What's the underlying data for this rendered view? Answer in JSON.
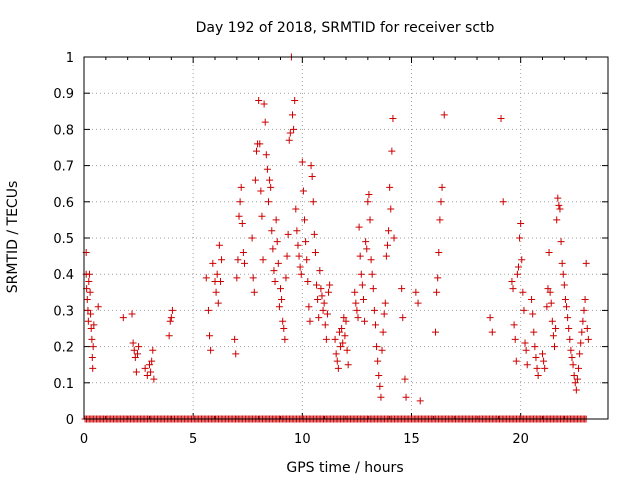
{
  "chart_data": {
    "type": "scatter",
    "title": "Day 192 of 2018, SRMTID for receiver sctb",
    "xlabel": "GPS time / hours",
    "ylabel": "SRMTID / TECUs",
    "xlim": [
      0,
      24
    ],
    "ylim": [
      0,
      1
    ],
    "xticks": [
      0,
      5,
      10,
      15,
      20
    ],
    "xtick_labels": [
      "0",
      "5",
      "10",
      "15",
      "20"
    ],
    "yticks": [
      0,
      0.1,
      0.2,
      0.3,
      0.4,
      0.5,
      0.6,
      0.7,
      0.8,
      0.9,
      1
    ],
    "ytick_labels": [
      "0",
      "0.1",
      "0.2",
      "0.3",
      "0.4",
      "0.5",
      "0.6",
      "0.7",
      "0.8",
      "0.9",
      "1"
    ],
    "grid": true,
    "marker": "+",
    "series": [
      {
        "name": "SRMTID",
        "color": "#cc0000",
        "points": [
          [
            0.1,
            0.46
          ],
          [
            0.1,
            0.4
          ],
          [
            0.12,
            0.36
          ],
          [
            0.15,
            0.33
          ],
          [
            0.18,
            0.3
          ],
          [
            0.2,
            0.27
          ],
          [
            0.22,
            0.38
          ],
          [
            0.25,
            0.4
          ],
          [
            0.28,
            0.35
          ],
          [
            0.3,
            0.29
          ],
          [
            0.33,
            0.25
          ],
          [
            0.36,
            0.22
          ],
          [
            0.38,
            0.17
          ],
          [
            0.4,
            0.14
          ],
          [
            0.42,
            0.2
          ],
          [
            0.45,
            0.26
          ],
          [
            0.65,
            0.31
          ],
          [
            1.8,
            0.28
          ],
          [
            2.2,
            0.29
          ],
          [
            2.25,
            0.21
          ],
          [
            2.3,
            0.19
          ],
          [
            2.35,
            0.17
          ],
          [
            2.4,
            0.13
          ],
          [
            2.45,
            0.18
          ],
          [
            2.5,
            0.2
          ],
          [
            2.8,
            0.14
          ],
          [
            2.9,
            0.12
          ],
          [
            3.0,
            0.15
          ],
          [
            3.05,
            0.13
          ],
          [
            3.1,
            0.16
          ],
          [
            3.15,
            0.19
          ],
          [
            3.2,
            0.11
          ],
          [
            3.9,
            0.23
          ],
          [
            3.95,
            0.27
          ],
          [
            4.0,
            0.28
          ],
          [
            4.05,
            0.3
          ],
          [
            5.6,
            0.39
          ],
          [
            5.7,
            0.3
          ],
          [
            5.75,
            0.23
          ],
          [
            5.8,
            0.19
          ],
          [
            5.9,
            0.43
          ],
          [
            6.0,
            0.38
          ],
          [
            6.05,
            0.35
          ],
          [
            6.1,
            0.4
          ],
          [
            6.15,
            0.32
          ],
          [
            6.2,
            0.48
          ],
          [
            6.25,
            0.38
          ],
          [
            6.3,
            0.44
          ],
          [
            6.9,
            0.22
          ],
          [
            6.95,
            0.18
          ],
          [
            7.0,
            0.39
          ],
          [
            7.05,
            0.44
          ],
          [
            7.1,
            0.56
          ],
          [
            7.15,
            0.6
          ],
          [
            7.2,
            0.64
          ],
          [
            7.25,
            0.54
          ],
          [
            7.3,
            0.46
          ],
          [
            7.35,
            0.43
          ],
          [
            7.7,
            0.5
          ],
          [
            7.75,
            0.39
          ],
          [
            7.8,
            0.35
          ],
          [
            7.85,
            0.66
          ],
          [
            7.9,
            0.74
          ],
          [
            7.95,
            0.76
          ],
          [
            8.0,
            0.88
          ],
          [
            8.05,
            0.76
          ],
          [
            8.1,
            0.63
          ],
          [
            8.15,
            0.56
          ],
          [
            8.2,
            0.44
          ],
          [
            8.25,
            0.87
          ],
          [
            8.3,
            0.82
          ],
          [
            8.35,
            0.73
          ],
          [
            8.4,
            0.69
          ],
          [
            8.45,
            0.6
          ],
          [
            8.5,
            0.66
          ],
          [
            8.55,
            0.64
          ],
          [
            8.6,
            0.52
          ],
          [
            8.65,
            0.47
          ],
          [
            8.7,
            0.41
          ],
          [
            8.75,
            0.38
          ],
          [
            8.8,
            0.55
          ],
          [
            8.85,
            0.49
          ],
          [
            8.9,
            0.43
          ],
          [
            8.95,
            0.31
          ],
          [
            9.0,
            0.36
          ],
          [
            9.05,
            0.33
          ],
          [
            9.1,
            0.27
          ],
          [
            9.15,
            0.25
          ],
          [
            9.2,
            0.22
          ],
          [
            9.25,
            0.39
          ],
          [
            9.3,
            0.45
          ],
          [
            9.35,
            0.51
          ],
          [
            9.4,
            0.77
          ],
          [
            9.45,
            0.79
          ],
          [
            9.5,
            1.0
          ],
          [
            9.55,
            0.84
          ],
          [
            9.6,
            0.8
          ],
          [
            9.65,
            0.88
          ],
          [
            9.7,
            0.58
          ],
          [
            9.75,
            0.52
          ],
          [
            9.8,
            0.48
          ],
          [
            9.85,
            0.45
          ],
          [
            9.9,
            0.42
          ],
          [
            9.95,
            0.4
          ],
          [
            10.0,
            0.71
          ],
          [
            10.05,
            0.63
          ],
          [
            10.1,
            0.55
          ],
          [
            10.15,
            0.49
          ],
          [
            10.2,
            0.44
          ],
          [
            10.25,
            0.38
          ],
          [
            10.3,
            0.31
          ],
          [
            10.35,
            0.27
          ],
          [
            10.4,
            0.7
          ],
          [
            10.45,
            0.67
          ],
          [
            10.5,
            0.6
          ],
          [
            10.55,
            0.51
          ],
          [
            10.6,
            0.46
          ],
          [
            10.65,
            0.37
          ],
          [
            10.7,
            0.33
          ],
          [
            10.75,
            0.28
          ],
          [
            10.8,
            0.41
          ],
          [
            10.85,
            0.36
          ],
          [
            10.9,
            0.34
          ],
          [
            10.95,
            0.3
          ],
          [
            11.0,
            0.32
          ],
          [
            11.05,
            0.26
          ],
          [
            11.1,
            0.22
          ],
          [
            11.15,
            0.29
          ],
          [
            11.2,
            0.35
          ],
          [
            11.25,
            0.37
          ],
          [
            11.5,
            0.22
          ],
          [
            11.55,
            0.18
          ],
          [
            11.6,
            0.16
          ],
          [
            11.65,
            0.14
          ],
          [
            11.7,
            0.24
          ],
          [
            11.75,
            0.2
          ],
          [
            11.8,
            0.25
          ],
          [
            11.85,
            0.21
          ],
          [
            11.9,
            0.28
          ],
          [
            11.95,
            0.23
          ],
          [
            12.0,
            0.27
          ],
          [
            12.05,
            0.19
          ],
          [
            12.1,
            0.15
          ],
          [
            12.4,
            0.35
          ],
          [
            12.45,
            0.32
          ],
          [
            12.5,
            0.3
          ],
          [
            12.55,
            0.28
          ],
          [
            12.6,
            0.53
          ],
          [
            12.65,
            0.45
          ],
          [
            12.7,
            0.4
          ],
          [
            12.75,
            0.37
          ],
          [
            12.8,
            0.33
          ],
          [
            12.85,
            0.27
          ],
          [
            12.9,
            0.49
          ],
          [
            12.95,
            0.47
          ],
          [
            13.0,
            0.6
          ],
          [
            13.05,
            0.62
          ],
          [
            13.1,
            0.55
          ],
          [
            13.15,
            0.44
          ],
          [
            13.2,
            0.4
          ],
          [
            13.25,
            0.36
          ],
          [
            13.3,
            0.3
          ],
          [
            13.35,
            0.26
          ],
          [
            13.4,
            0.2
          ],
          [
            13.45,
            0.16
          ],
          [
            13.5,
            0.12
          ],
          [
            13.55,
            0.09
          ],
          [
            13.6,
            0.06
          ],
          [
            13.65,
            0.19
          ],
          [
            13.7,
            0.24
          ],
          [
            13.75,
            0.29
          ],
          [
            13.8,
            0.32
          ],
          [
            13.85,
            0.45
          ],
          [
            13.9,
            0.48
          ],
          [
            13.95,
            0.52
          ],
          [
            14.0,
            0.64
          ],
          [
            14.05,
            0.58
          ],
          [
            14.1,
            0.74
          ],
          [
            14.15,
            0.83
          ],
          [
            14.2,
            0.5
          ],
          [
            14.55,
            0.36
          ],
          [
            14.6,
            0.28
          ],
          [
            14.7,
            0.11
          ],
          [
            14.75,
            0.06
          ],
          [
            15.2,
            0.35
          ],
          [
            15.3,
            0.32
          ],
          [
            15.4,
            0.05
          ],
          [
            16.1,
            0.24
          ],
          [
            16.15,
            0.35
          ],
          [
            16.2,
            0.39
          ],
          [
            16.25,
            0.46
          ],
          [
            16.3,
            0.55
          ],
          [
            16.35,
            0.6
          ],
          [
            16.4,
            0.64
          ],
          [
            16.5,
            0.84
          ],
          [
            18.6,
            0.28
          ],
          [
            18.7,
            0.24
          ],
          [
            19.1,
            0.83
          ],
          [
            19.2,
            0.6
          ],
          [
            19.6,
            0.38
          ],
          [
            19.65,
            0.36
          ],
          [
            19.7,
            0.26
          ],
          [
            19.75,
            0.22
          ],
          [
            19.8,
            0.16
          ],
          [
            19.85,
            0.4
          ],
          [
            19.9,
            0.42
          ],
          [
            19.95,
            0.5
          ],
          [
            20.0,
            0.54
          ],
          [
            20.05,
            0.44
          ],
          [
            20.1,
            0.35
          ],
          [
            20.15,
            0.3
          ],
          [
            20.2,
            0.21
          ],
          [
            20.25,
            0.19
          ],
          [
            20.3,
            0.15
          ],
          [
            20.5,
            0.33
          ],
          [
            20.55,
            0.29
          ],
          [
            20.6,
            0.24
          ],
          [
            20.65,
            0.2
          ],
          [
            20.7,
            0.17
          ],
          [
            20.75,
            0.14
          ],
          [
            20.8,
            0.12
          ],
          [
            21.0,
            0.18
          ],
          [
            21.05,
            0.16
          ],
          [
            21.1,
            0.14
          ],
          [
            21.2,
            0.31
          ],
          [
            21.25,
            0.36
          ],
          [
            21.3,
            0.46
          ],
          [
            21.35,
            0.35
          ],
          [
            21.4,
            0.32
          ],
          [
            21.45,
            0.27
          ],
          [
            21.5,
            0.23
          ],
          [
            21.55,
            0.2
          ],
          [
            21.6,
            0.25
          ],
          [
            21.65,
            0.55
          ],
          [
            21.7,
            0.61
          ],
          [
            21.75,
            0.59
          ],
          [
            21.8,
            0.58
          ],
          [
            21.85,
            0.49
          ],
          [
            21.9,
            0.43
          ],
          [
            21.95,
            0.4
          ],
          [
            22.0,
            0.37
          ],
          [
            22.05,
            0.33
          ],
          [
            22.1,
            0.31
          ],
          [
            22.15,
            0.28
          ],
          [
            22.2,
            0.25
          ],
          [
            22.25,
            0.22
          ],
          [
            22.3,
            0.19
          ],
          [
            22.35,
            0.17
          ],
          [
            22.4,
            0.15
          ],
          [
            22.45,
            0.12
          ],
          [
            22.5,
            0.1
          ],
          [
            22.55,
            0.08
          ],
          [
            22.6,
            0.11
          ],
          [
            22.65,
            0.14
          ],
          [
            22.7,
            0.18
          ],
          [
            22.75,
            0.21
          ],
          [
            22.8,
            0.24
          ],
          [
            22.85,
            0.27
          ],
          [
            22.9,
            0.3
          ],
          [
            22.95,
            0.33
          ],
          [
            23.0,
            0.43
          ],
          [
            23.05,
            0.25
          ],
          [
            23.1,
            0.22
          ]
        ],
        "zero_rows": [
          [
            0.05,
            23.05
          ]
        ]
      }
    ]
  }
}
